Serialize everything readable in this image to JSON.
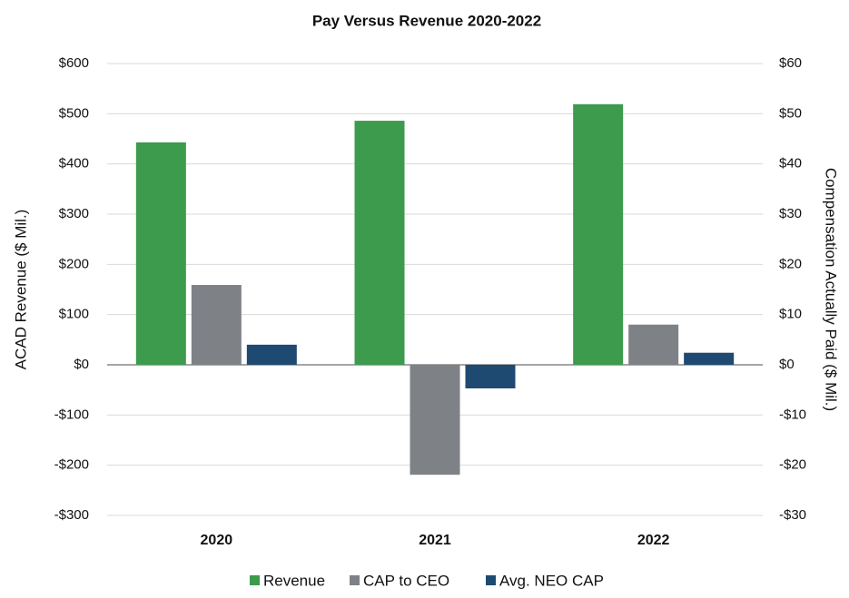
{
  "chart_data": {
    "type": "bar",
    "title": "Pay Versus Revenue 2020-2022",
    "categories": [
      "2020",
      "2021",
      "2022"
    ],
    "series": [
      {
        "name": "Revenue",
        "color": "#3c9b4c",
        "values": [
          443,
          486,
          519
        ]
      },
      {
        "name": "CAP to CEO",
        "color": "#7e8186",
        "axis": "y2",
        "values": [
          15.9,
          -21.9,
          8.0
        ]
      },
      {
        "name": "Avg. NEO CAP",
        "color": "#1e4a72",
        "axis": "y2",
        "values": [
          4.0,
          -4.7,
          2.4
        ]
      }
    ],
    "ylabel": "ACAD Revenue ($ Mil.)",
    "y2label": "Compensation Actually Paid ($ Mil.)",
    "ylim": [
      -300,
      600
    ],
    "yticks": [
      {
        "value": -300,
        "label": "-$300"
      },
      {
        "value": -200,
        "label": "-$200"
      },
      {
        "value": -100,
        "label": "-$100"
      },
      {
        "value": 0,
        "label": "$0"
      },
      {
        "value": 100,
        "label": "$100"
      },
      {
        "value": 200,
        "label": "$200"
      },
      {
        "value": 300,
        "label": "$300"
      },
      {
        "value": 400,
        "label": "$400"
      },
      {
        "value": 500,
        "label": "$500"
      },
      {
        "value": 600,
        "label": "$600"
      }
    ],
    "y2lim": [
      -30,
      60
    ],
    "y2ticks": [
      {
        "value": -30,
        "label": "-$30"
      },
      {
        "value": -20,
        "label": "-$20"
      },
      {
        "value": -10,
        "label": "-$10"
      },
      {
        "value": 0,
        "label": "$0"
      },
      {
        "value": 10,
        "label": "$10"
      },
      {
        "value": 20,
        "label": "$20"
      },
      {
        "value": 30,
        "label": "$30"
      },
      {
        "value": 40,
        "label": "$40"
      },
      {
        "value": 50,
        "label": "$50"
      },
      {
        "value": 60,
        "label": "$60"
      }
    ],
    "grid": true,
    "legend": "bottom"
  }
}
